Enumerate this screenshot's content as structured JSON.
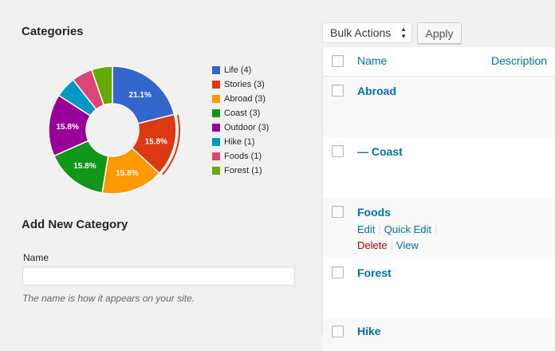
{
  "categories_heading": "Categories",
  "chart_data": {
    "type": "pie",
    "slices": [
      {
        "label": "Life (4)",
        "name": "Life",
        "value": 21.1,
        "text": "21.1%",
        "color": "#3366cc"
      },
      {
        "label": "Stories (3)",
        "name": "Stories",
        "value": 15.8,
        "text": "15.8%",
        "color": "#dc3912"
      },
      {
        "label": "Abroad (3)",
        "name": "Abroad",
        "value": 15.8,
        "text": "15.8%",
        "color": "#ff9900"
      },
      {
        "label": "Coast (3)",
        "name": "Coast",
        "value": 15.8,
        "text": "15.8%",
        "color": "#109618"
      },
      {
        "label": "Outdoor (3)",
        "name": "Outdoor",
        "value": 15.8,
        "text": "15.8%",
        "color": "#990099"
      },
      {
        "label": "Hike (1)",
        "name": "Hike",
        "value": 5.3,
        "text": "",
        "color": "#0099c6"
      },
      {
        "label": "Foods (1)",
        "name": "Foods",
        "value": 5.3,
        "text": "",
        "color": "#dd4477"
      },
      {
        "label": "Forest (1)",
        "name": "Forest",
        "value": 5.3,
        "text": "",
        "color": "#66aa00"
      }
    ],
    "highlighted": "Stories",
    "legend_position": "right"
  },
  "add_new": {
    "heading": "Add New Category",
    "name_label": "Name",
    "name_value": "",
    "name_hint": "The name is how it appears on your site."
  },
  "toolbar": {
    "bulk_actions": "Bulk Actions",
    "apply": "Apply"
  },
  "table": {
    "columns": {
      "name": "Name",
      "description": "Description"
    },
    "rows": [
      {
        "title": "Abroad"
      },
      {
        "title": "— Coast"
      },
      {
        "title": "Foods",
        "actions": [
          "Edit",
          "Quick Edit",
          "Delete",
          "View"
        ]
      },
      {
        "title": "Forest"
      },
      {
        "title": "Hike"
      }
    ]
  }
}
